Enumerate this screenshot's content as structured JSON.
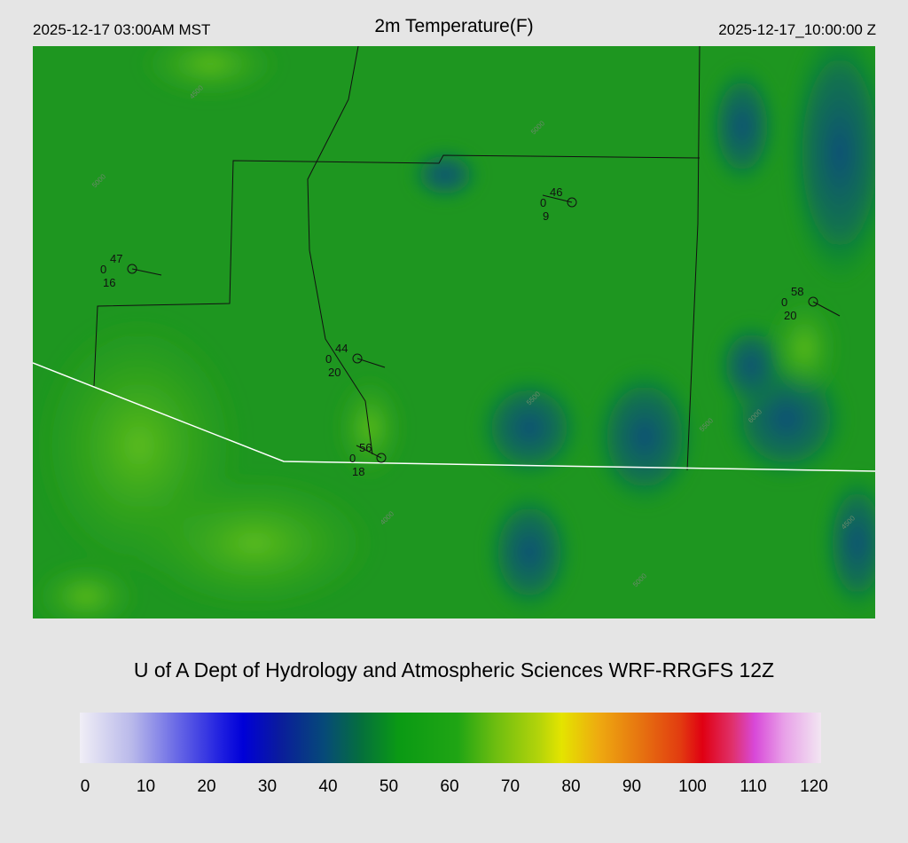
{
  "header": {
    "local_time": "2025-12-17 03:00AM MST",
    "title": "2m Temperature(F)",
    "utc_time": "2025-12-17_10:00:00 Z"
  },
  "stations": [
    {
      "temperature": 47,
      "left": 0,
      "bottom": 16
    },
    {
      "temperature": 46,
      "left": 0,
      "bottom": 9
    },
    {
      "temperature": 58,
      "left": 0,
      "bottom": 20
    },
    {
      "temperature": 44,
      "left": 0,
      "bottom": 20
    },
    {
      "temperature": 56,
      "left": 0,
      "bottom": 18
    }
  ],
  "contour_labels": [
    "5000",
    "4500",
    "5000",
    "5500",
    "6000",
    "5500",
    "4000",
    "4500",
    "5000"
  ],
  "credit": "U of A Dept of Hydrology and Atmospheric Sciences WRF-RRGFS 12Z",
  "colorbar": {
    "ticks": [
      0,
      10,
      20,
      30,
      40,
      50,
      60,
      70,
      80,
      90,
      100,
      110,
      120
    ]
  }
}
